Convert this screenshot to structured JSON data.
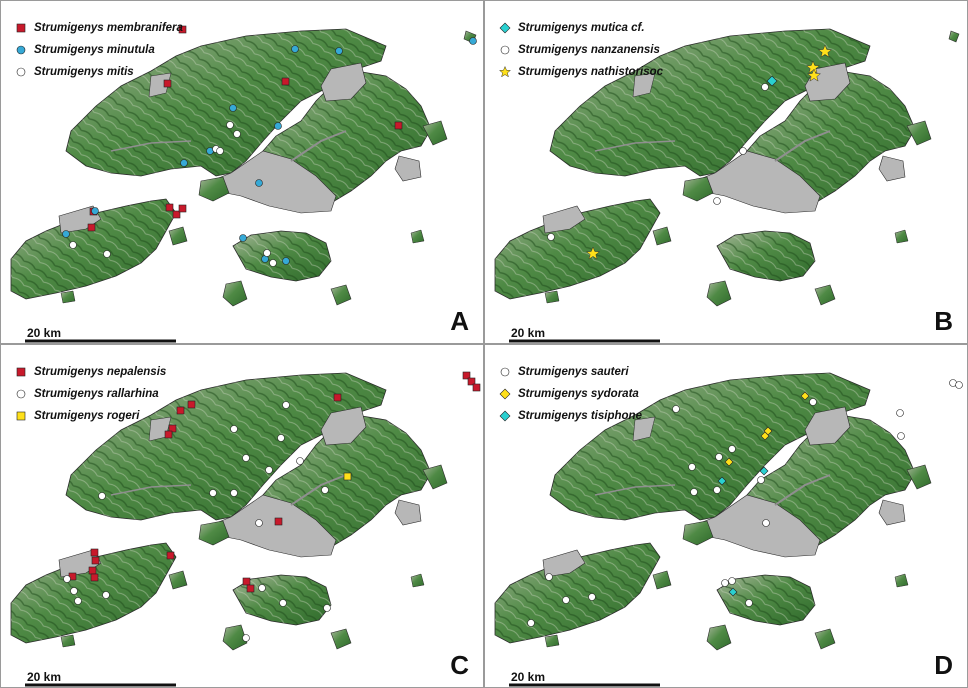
{
  "colors": {
    "land_light": "#a9b79c",
    "land_dark": "#2f6a2b",
    "reclaimed_gray": "#b7b7b7",
    "coast": "#2b2b2b",
    "marker_red": "#c8192b",
    "marker_blue": "#36a9d6",
    "marker_white": "#ffffff",
    "marker_yellow": "#ffe01a",
    "marker_cyan": "#2ad0d0"
  },
  "scale_bar_label": "20 km",
  "panels": [
    {
      "letter": "A",
      "legend": [
        {
          "label": "Strumigenys membranifera",
          "symbol": "red-square",
          "color": "#c8192b"
        },
        {
          "label": "Strumigenys minutula",
          "symbol": "blue-circle",
          "color": "#36a9d6"
        },
        {
          "label": "Strumigenys mitis",
          "symbol": "white-circle",
          "color": "#ffffff"
        }
      ]
    },
    {
      "letter": "B",
      "legend": [
        {
          "label": "Strumigenys mutica cf.",
          "symbol": "cyan-diamond",
          "color": "#2ad0d0"
        },
        {
          "label": "Strumigenys nanzanensis",
          "symbol": "white-circle",
          "color": "#ffffff"
        },
        {
          "label": "Strumigenys nathistorisoc",
          "symbol": "yellow-star",
          "color": "#ffe01a"
        }
      ]
    },
    {
      "letter": "C",
      "legend": [
        {
          "label": "Strumigenys nepalensis",
          "symbol": "red-square",
          "color": "#c8192b"
        },
        {
          "label": "Strumigenys rallarhina",
          "symbol": "white-circle",
          "color": "#ffffff"
        },
        {
          "label": "Strumigenys rogeri",
          "symbol": "yellow-square",
          "color": "#ffe01a"
        }
      ]
    },
    {
      "letter": "D",
      "legend": [
        {
          "label": "Strumigenys sauteri",
          "symbol": "white-circle",
          "color": "#ffffff"
        },
        {
          "label": "Strumigenys sydorata",
          "symbol": "yellow-diamond",
          "color": "#ffe01a"
        },
        {
          "label": "Strumigenys tisiphone",
          "symbol": "cyan-diamond",
          "color": "#2ad0d0"
        }
      ]
    }
  ]
}
